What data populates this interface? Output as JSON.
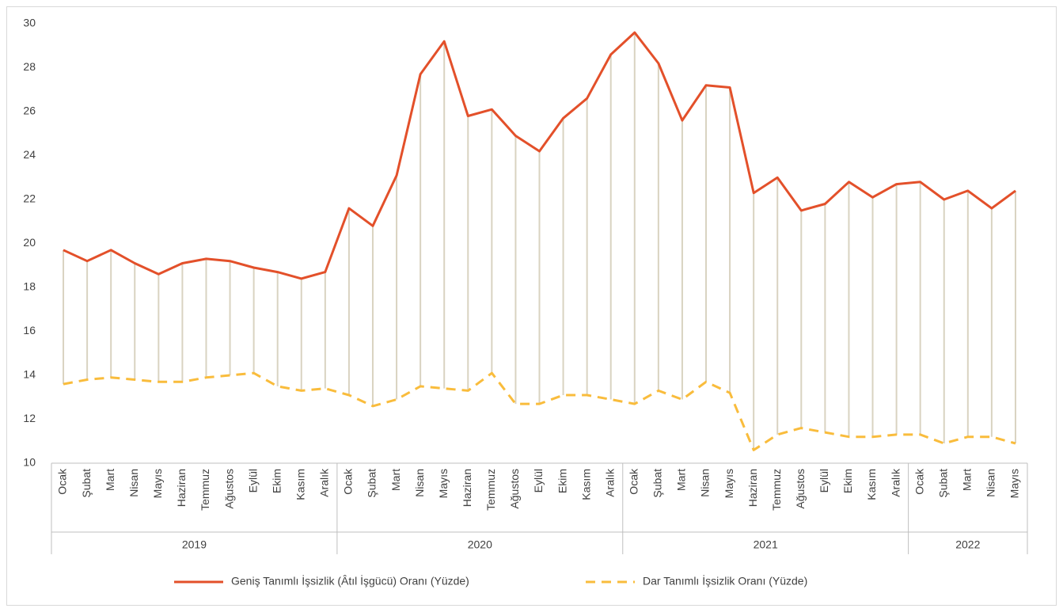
{
  "chart_data": {
    "type": "line",
    "groups": [
      {
        "name": "2019",
        "categories": [
          "Ocak",
          "Şubat",
          "Mart",
          "Nisan",
          "Mayıs",
          "Haziran",
          "Temmuz",
          "Ağustos",
          "Eylül",
          "Ekim",
          "Kasım",
          "Aralık"
        ]
      },
      {
        "name": "2020",
        "categories": [
          "Ocak",
          "Şubat",
          "Mart",
          "Nisan",
          "Mayıs",
          "Haziran",
          "Temmuz",
          "Ağustos",
          "Eylül",
          "Ekim",
          "Kasım",
          "Aralık"
        ]
      },
      {
        "name": "2021",
        "categories": [
          "Ocak",
          "Şubat",
          "Mart",
          "Nisan",
          "Mayıs",
          "Haziran",
          "Temmuz",
          "Ağustos",
          "Eylül",
          "Ekim",
          "Kasım",
          "Aralık"
        ]
      },
      {
        "name": "2022",
        "categories": [
          "Ocak",
          "Şubat",
          "Mart",
          "Nisan",
          "Mayıs"
        ]
      }
    ],
    "series": [
      {
        "name": "Geniş Tanımlı İşsizlik (Âtıl İşgücü) Oranı (Yüzde)",
        "color": "#e3502a",
        "dash": false,
        "values": [
          19.7,
          19.2,
          19.7,
          19.1,
          18.6,
          19.1,
          19.3,
          19.2,
          18.9,
          18.7,
          18.4,
          18.7,
          21.6,
          20.8,
          23.1,
          27.7,
          29.2,
          25.8,
          26.1,
          24.9,
          24.2,
          25.7,
          26.6,
          28.6,
          29.6,
          28.2,
          25.6,
          27.2,
          27.1,
          22.3,
          23.0,
          21.5,
          21.8,
          22.8,
          22.1,
          22.7,
          22.8,
          22.0,
          22.4,
          21.6,
          22.4
        ]
      },
      {
        "name": "Dar Tanımlı İşsizlik Oranı (Yüzde)",
        "color": "#f9bc3c",
        "dash": true,
        "values": [
          13.6,
          13.8,
          13.9,
          13.8,
          13.7,
          13.7,
          13.9,
          14.0,
          14.1,
          13.5,
          13.3,
          13.4,
          13.1,
          12.6,
          12.9,
          13.5,
          13.4,
          13.3,
          14.1,
          12.7,
          12.7,
          13.1,
          13.1,
          12.9,
          12.7,
          13.3,
          12.9,
          13.7,
          13.2,
          10.6,
          11.3,
          11.6,
          11.4,
          11.2,
          11.2,
          11.3,
          11.3,
          10.9,
          11.2,
          11.2,
          10.9
        ]
      }
    ],
    "drop_lines": true,
    "drop_line_color": "#d9d3c1",
    "ylim": [
      10,
      30
    ],
    "yticks": [
      10,
      12,
      14,
      16,
      18,
      20,
      22,
      24,
      26,
      28,
      30
    ]
  }
}
